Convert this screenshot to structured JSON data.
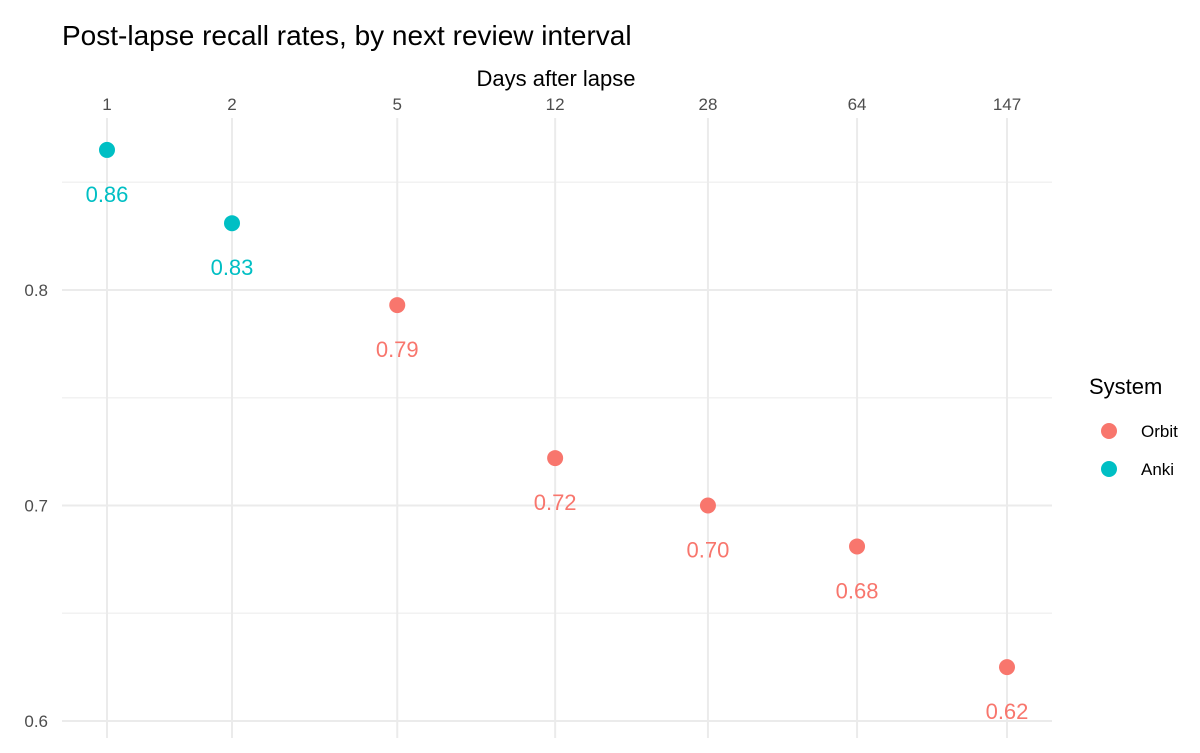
{
  "chart_data": {
    "type": "scatter",
    "title": "Post-lapse recall rates, by next review interval",
    "xlabel": "Days after lapse",
    "ylabel": "",
    "x_scale": "log",
    "x_axis_position": "top",
    "xticks": [
      1,
      2,
      5,
      12,
      28,
      64,
      147
    ],
    "xtick_labels": [
      "1",
      "2",
      "5",
      "12",
      "28",
      "64",
      "147"
    ],
    "ylim": [
      0.595,
      0.865
    ],
    "yticks": [
      0.6,
      0.7,
      0.8
    ],
    "ytick_labels": [
      "0.6",
      "0.7",
      "0.8"
    ],
    "grid": true,
    "legend": {
      "title": "System",
      "position": "right",
      "entries": [
        {
          "name": "Orbit",
          "color": "#F8766D"
        },
        {
          "name": "Anki",
          "color": "#00BFC4"
        }
      ]
    },
    "series": [
      {
        "name": "Anki",
        "color": "#00BFC4",
        "points": [
          {
            "x": 1,
            "y": 0.865,
            "label": "0.86"
          },
          {
            "x": 2,
            "y": 0.831,
            "label": "0.83"
          }
        ]
      },
      {
        "name": "Orbit",
        "color": "#F8766D",
        "points": [
          {
            "x": 5,
            "y": 0.793,
            "label": "0.79"
          },
          {
            "x": 12,
            "y": 0.722,
            "label": "0.72"
          },
          {
            "x": 28,
            "y": 0.7,
            "label": "0.70"
          },
          {
            "x": 64,
            "y": 0.681,
            "label": "0.68"
          },
          {
            "x": 147,
            "y": 0.625,
            "label": "0.62"
          }
        ]
      }
    ]
  }
}
